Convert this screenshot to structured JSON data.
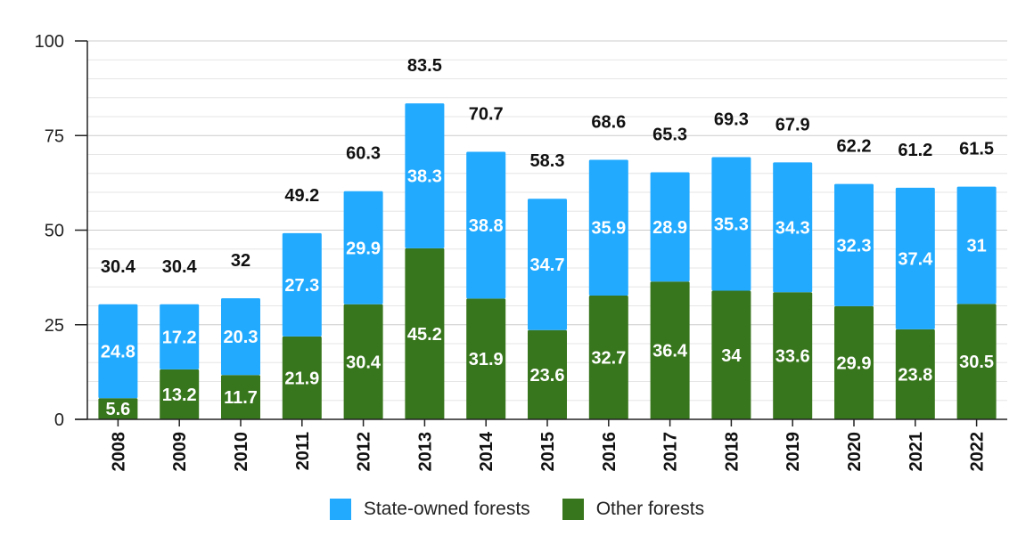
{
  "chart_data": {
    "type": "bar",
    "stacked": true,
    "categories": [
      "2008",
      "2009",
      "2010",
      "2011",
      "2012",
      "2013",
      "2014",
      "2015",
      "2016",
      "2017",
      "2018",
      "2019",
      "2020",
      "2021",
      "2022"
    ],
    "series": [
      {
        "name": "Other forests",
        "color": "#38761d",
        "values": [
          5.6,
          13.2,
          11.7,
          21.9,
          30.4,
          45.2,
          31.9,
          23.6,
          32.7,
          36.4,
          34,
          33.6,
          29.9,
          23.8,
          30.5
        ]
      },
      {
        "name": "State-owned forests",
        "color": "#22aaff",
        "values": [
          24.8,
          17.2,
          20.3,
          27.3,
          29.9,
          38.3,
          38.8,
          34.7,
          35.9,
          28.9,
          35.3,
          34.3,
          32.3,
          37.4,
          31
        ]
      }
    ],
    "totals": [
      30.4,
      30.4,
      32,
      49.2,
      60.3,
      83.5,
      70.7,
      58.3,
      68.6,
      65.3,
      69.3,
      67.9,
      62.2,
      61.2,
      61.5
    ],
    "ylim": [
      0,
      100
    ],
    "yticks": [
      0,
      25,
      50,
      75,
      100
    ],
    "grid": true,
    "legend_position": "bottom"
  },
  "legend": [
    {
      "label": "State-owned forests",
      "color": "#22aaff"
    },
    {
      "label": "Other forests",
      "color": "#38761d"
    }
  ]
}
